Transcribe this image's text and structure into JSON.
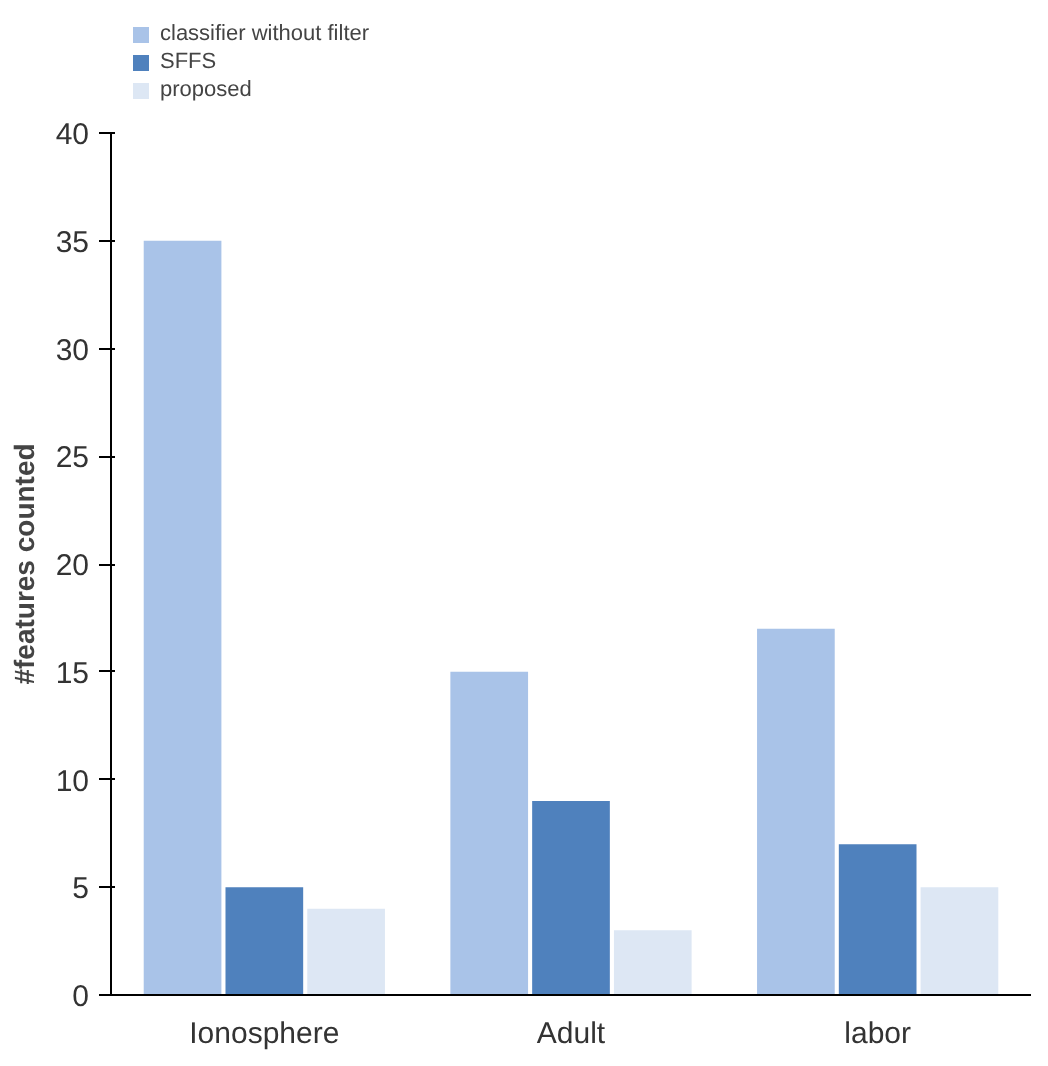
{
  "chart_data": {
    "type": "bar",
    "ylabel": "#features counted",
    "categories": [
      "Ionosphere",
      "Adult",
      "labor"
    ],
    "series": [
      {
        "name": "classifier without filter",
        "color": "#a9c3e8",
        "values": [
          35,
          15,
          17
        ]
      },
      {
        "name": "SFFS",
        "color": "#4f81bd",
        "values": [
          5,
          9,
          7
        ]
      },
      {
        "name": "proposed",
        "color": "#dde7f4",
        "values": [
          4,
          3,
          5
        ]
      }
    ],
    "ylim": [
      0,
      40
    ],
    "yticks": [
      0,
      5,
      10,
      15,
      20,
      25,
      30,
      35,
      40
    ],
    "grid": false,
    "legend": "top left"
  }
}
